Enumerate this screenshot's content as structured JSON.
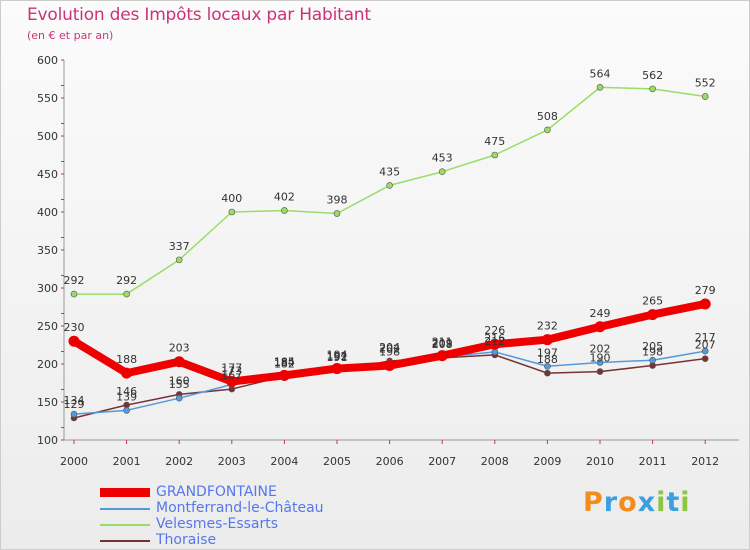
{
  "header": {
    "title": "Evolution des Impôts locaux par Habitant",
    "subtitle": "(en € et par an)"
  },
  "brand": {
    "letters": [
      "P",
      "r",
      "o",
      "x",
      "i",
      "t",
      "i"
    ],
    "colors": [
      "#f28c1f",
      "#3aa0e0",
      "#f28c1f",
      "#3aa0e0",
      "#8dc63f",
      "#3aa0e0",
      "#8dc63f"
    ]
  },
  "chart_data": {
    "type": "line",
    "title": "Evolution des Impôts locaux par Habitant",
    "subtitle": "(en € et par an)",
    "xlabel": "",
    "ylabel": "",
    "ylim": [
      100,
      600
    ],
    "yticks": [
      100,
      150,
      200,
      250,
      300,
      350,
      400,
      450,
      500,
      550,
      600
    ],
    "grid": false,
    "legend_position": "bottom-left",
    "categories": [
      "2000",
      "2001",
      "2002",
      "2003",
      "2004",
      "2005",
      "2006",
      "2007",
      "2008",
      "2009",
      "2010",
      "2011",
      "2012"
    ],
    "series": [
      {
        "name": "GRANDFONTAINE",
        "color": "#ee0000",
        "values": [
          230,
          188,
          203,
          177,
          185,
          194,
          198,
          211,
          226,
          232,
          249,
          265,
          279
        ],
        "labels": [
          "230",
          "188",
          "203",
          "177",
          "185",
          "194",
          "198",
          "211",
          "226",
          "232",
          "249",
          "265",
          "279"
        ]
      },
      {
        "name": "Montferrand-le-Château",
        "color": "#5599dd",
        "values": [
          134,
          139,
          155,
          173,
          182,
          192,
          202,
          209,
          216,
          197,
          202,
          205,
          217
        ],
        "labels": [
          "134",
          "139",
          "155",
          "173",
          "182",
          "192",
          "202",
          "209",
          "216",
          "197",
          "202",
          "205",
          "217"
        ]
      },
      {
        "name": "Velesmes-Essarts",
        "color": "#99dd66",
        "values": [
          292,
          292,
          337,
          400,
          402,
          398,
          435,
          453,
          475,
          508,
          564,
          562,
          552
        ],
        "labels": [
          "292",
          "292",
          "337",
          "400",
          "402",
          "398",
          "435",
          "453",
          "475",
          "508",
          "564",
          "562",
          "552"
        ]
      },
      {
        "name": "Thoraise",
        "color": "#773333",
        "values": [
          129,
          146,
          160,
          167,
          184,
          191,
          204,
          208,
          212,
          188,
          190,
          198,
          207
        ],
        "labels": [
          "129",
          "146",
          "160",
          "167",
          "184",
          "191",
          "204",
          "208",
          "212",
          "188",
          "190",
          "198",
          "207"
        ]
      }
    ]
  }
}
